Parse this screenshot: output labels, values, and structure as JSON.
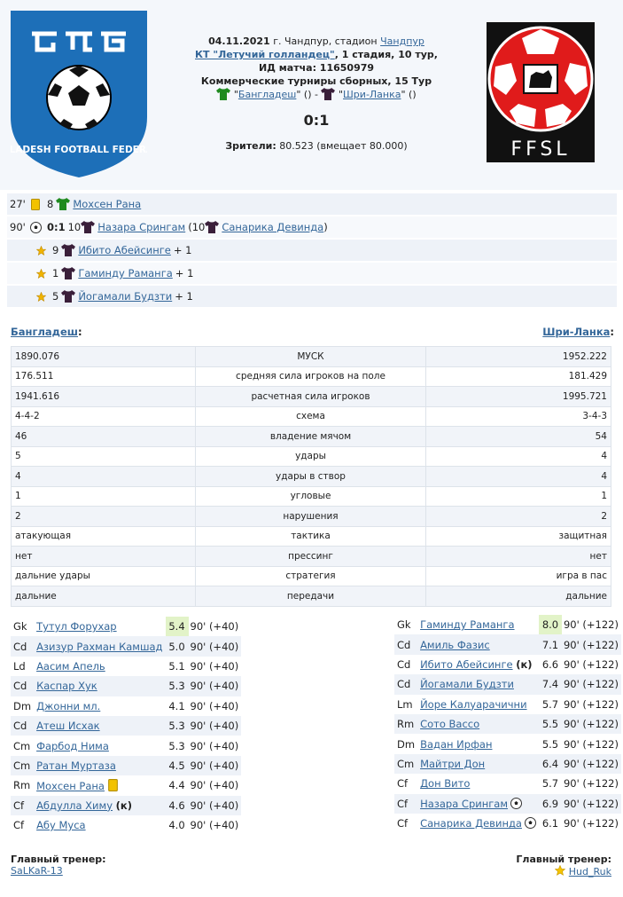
{
  "match": {
    "date": "04.11.2021",
    "city_prefix": "г. Чандпур, стадион",
    "stadium_link": "Чандпур",
    "club_link": "КТ \"Летучий голландец\"",
    "stage_suffix": ", 1 стадия, 10 тур,",
    "match_id": "ИД матча: 11650979",
    "tournament": "Коммерческие турниры сборных, 15 Тур",
    "home_team": "Бангладеш",
    "away_team": "Шри-Ланка",
    "score": "0:1",
    "attendance_label": "Зрители:",
    "attendance_value": "80.523 (вмещает 80.000)",
    "home_logo_text": "BANGLADESH FOOTBALL FEDERATION",
    "away_logo_text": "FFSL"
  },
  "colors": {
    "home_shirt": "#1f8a1f",
    "away_shirt": "#3a1f3a",
    "link": "#336699",
    "rating_best": "#e2f3c8"
  },
  "events": [
    {
      "minute": "27'",
      "icon": "yellow-card-icon",
      "team": "home",
      "number": "8",
      "player": "Мохсен Рана"
    },
    {
      "minute": "90'",
      "icon": "goal-ball-icon",
      "score": "0:1",
      "number": "10",
      "player": "Назара Сრингам",
      "assist_number": "(10",
      "assist_player": "Санарика Девинда",
      "close": ")"
    },
    {
      "icon": "assist-star-icon",
      "number": "9",
      "player": "Ибито Абейсинге",
      "plus": "+ 1"
    },
    {
      "icon": "assist-star-icon",
      "number": "1",
      "player": "Гаминду Раманга",
      "plus": "+ 1"
    },
    {
      "icon": "assist-star-icon",
      "number": "5",
      "player": "Йогамали Будзти",
      "plus": "+ 1"
    }
  ],
  "stats_home_label": "Бангладеш",
  "stats_away_label": "Шри-Ланка",
  "stats": [
    {
      "home": "1890.076",
      "label": "МУСК",
      "away": "1952.222"
    },
    {
      "home": "176.511",
      "label": "средняя сила игроков на поле",
      "away": "181.429"
    },
    {
      "home": "1941.616",
      "label": "расчетная сила игроков",
      "away": "1995.721"
    },
    {
      "home": "4-4-2",
      "label": "схема",
      "away": "3-4-3"
    },
    {
      "home": "46",
      "label": "владение мячом",
      "away": "54"
    },
    {
      "home": "5",
      "label": "удары",
      "away": "4"
    },
    {
      "home": "4",
      "label": "удары в створ",
      "away": "4"
    },
    {
      "home": "1",
      "label": "угловые",
      "away": "1"
    },
    {
      "home": "2",
      "label": "нарушения",
      "away": "2"
    },
    {
      "home": "атакующая",
      "label": "тактика",
      "away": "защитная"
    },
    {
      "home": "нет",
      "label": "прессинг",
      "away": "нет"
    },
    {
      "home": "дальние удары",
      "label": "стратегия",
      "away": "игра в пас"
    },
    {
      "home": "дальние",
      "label": "передачи",
      "away": "дальние"
    }
  ],
  "home_lineup": [
    {
      "pos": "Gk",
      "name": "Тутул Форухар",
      "rating": "5.4",
      "min": "90' (+40)",
      "best": true
    },
    {
      "pos": "Cd",
      "name": "Азизур Рахман Камшад",
      "rating": "5.0",
      "min": "90' (+40)"
    },
    {
      "pos": "Ld",
      "name": "Аасим Апель",
      "rating": "5.1",
      "min": "90' (+40)"
    },
    {
      "pos": "Cd",
      "name": "Каспар Хук",
      "rating": "5.3",
      "min": "90' (+40)"
    },
    {
      "pos": "Dm",
      "name": "Джонни мл.",
      "rating": "4.1",
      "min": "90' (+40)"
    },
    {
      "pos": "Cd",
      "name": "Атеш Исхак",
      "rating": "5.3",
      "min": "90' (+40)"
    },
    {
      "pos": "Cm",
      "name": "Фарбод Нима",
      "rating": "5.3",
      "min": "90' (+40)"
    },
    {
      "pos": "Cm",
      "name": "Ратан Муртаза",
      "rating": "4.5",
      "min": "90' (+40)"
    },
    {
      "pos": "Rm",
      "name": "Мохсен Рана",
      "rating": "4.4",
      "min": "90' (+40)",
      "card": true
    },
    {
      "pos": "Cf",
      "name": "Абдулла Химу",
      "rating": "4.6",
      "min": "90' (+40)",
      "captain": "(к)"
    },
    {
      "pos": "Cf",
      "name": "Абу Муса",
      "rating": "4.0",
      "min": "90' (+40)"
    }
  ],
  "away_lineup": [
    {
      "pos": "Gk",
      "name": "Гаминду Раманга",
      "rating": "8.0",
      "min": "90' (+122)",
      "best": true
    },
    {
      "pos": "Cd",
      "name": "Амиль Фазис",
      "rating": "7.1",
      "min": "90' (+122)"
    },
    {
      "pos": "Cd",
      "name": "Ибито Абейсинге",
      "rating": "6.6",
      "min": "90' (+122)",
      "captain": "(к)"
    },
    {
      "pos": "Cd",
      "name": "Йогамали Будзти",
      "rating": "7.4",
      "min": "90' (+122)"
    },
    {
      "pos": "Lm",
      "name": "Йоре Калуарачични",
      "rating": "5.7",
      "min": "90' (+122)"
    },
    {
      "pos": "Rm",
      "name": "Сото Вассо",
      "rating": "5.5",
      "min": "90' (+122)"
    },
    {
      "pos": "Dm",
      "name": "Вадан Ирфан",
      "rating": "5.5",
      "min": "90' (+122)"
    },
    {
      "pos": "Cm",
      "name": "Майтри Дон",
      "rating": "6.4",
      "min": "90' (+122)"
    },
    {
      "pos": "Cf",
      "name": "Дон Вито",
      "rating": "5.7",
      "min": "90' (+122)"
    },
    {
      "pos": "Cf",
      "name": "Назара Срингам",
      "rating": "6.9",
      "min": "90' (+122)",
      "goal": true
    },
    {
      "pos": "Cf",
      "name": "Санарика Девинда",
      "rating": "6.1",
      "min": "90' (+122)",
      "goal": true
    }
  ],
  "coach_label": "Главный тренер:",
  "home_coach": "SaLKaR-13",
  "away_coach": "Hud_Ruk"
}
